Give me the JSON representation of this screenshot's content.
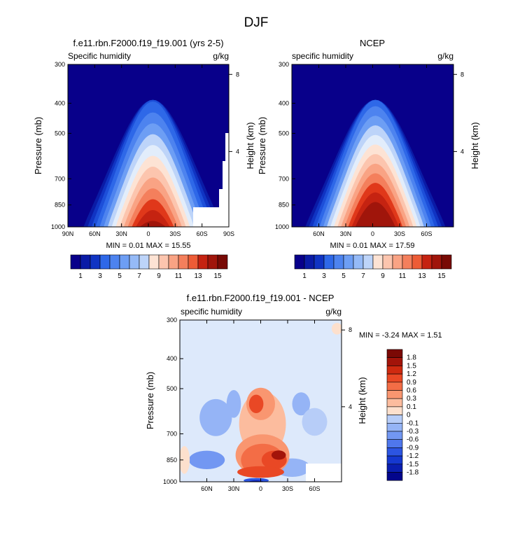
{
  "figure_title": "DJF",
  "colors": {
    "abs_palette": [
      "#08008a",
      "#0a1ba6",
      "#1034c3",
      "#1d4fd9",
      "#2e68e8",
      "#4d83ef",
      "#6d9ef4",
      "#95baf7",
      "#bdd4f9",
      "#e2edfb",
      "#fde3d4",
      "#fcc5ae",
      "#f9a384",
      "#f47f5c",
      "#ed5c36",
      "#e0381a",
      "#c52311",
      "#a0150b",
      "#780a05"
    ],
    "diff_palette": [
      "#03068c",
      "#0a1eb0",
      "#1538d0",
      "#2c55e2",
      "#4f77ec",
      "#7297f2",
      "#95b4f6",
      "#b7cdf8",
      "#dde9fb",
      "#fde0cd",
      "#fcbc9e",
      "#f99670",
      "#f36d46",
      "#e94825",
      "#cf2a10",
      "#a3140a",
      "#7b0905"
    ]
  },
  "chart_data": [
    {
      "type": "heatmap",
      "title": "f.e11.rbn.F2000.f19_f19.001 (yrs 2-5)",
      "left_label": "Specific humidity",
      "units": "g/kg",
      "ylabel": "Pressure (mb)",
      "ylabel_right": "Height (km)",
      "x_ticks": [
        "90N",
        "60N",
        "30N",
        "0",
        "30S",
        "60S",
        "90S"
      ],
      "x_range": [
        90,
        -90
      ],
      "y_ticks": [
        "300",
        "400",
        "500",
        "700",
        "850",
        "1000"
      ],
      "y_range": [
        1000,
        300
      ],
      "right_ticks": [
        "8",
        "4"
      ],
      "stats": "MIN =  0.01   MAX =  15.55",
      "min": 0.01,
      "max": 15.55,
      "peak_lat": -5,
      "colorbar_labels": [
        "1",
        "3",
        "5",
        "7",
        "9",
        "11",
        "13",
        "15"
      ]
    },
    {
      "type": "heatmap",
      "title": "NCEP",
      "left_label": "specific humidity",
      "units": "g/kg",
      "ylabel": "Pressure (mb)",
      "ylabel_right": "Height (km)",
      "x_ticks": [
        "60N",
        "30N",
        "0",
        "30S",
        "60S"
      ],
      "x_range": [
        90,
        -90
      ],
      "y_ticks": [
        "300",
        "400",
        "500",
        "700",
        "850",
        "1000"
      ],
      "y_range": [
        1000,
        300
      ],
      "right_ticks": [
        "8",
        "4"
      ],
      "stats": "MIN =  0.01   MAX =  17.59",
      "min": 0.01,
      "max": 17.59,
      "peak_lat": -3,
      "colorbar_labels": [
        "1",
        "3",
        "5",
        "7",
        "9",
        "11",
        "13",
        "15"
      ]
    },
    {
      "type": "heatmap",
      "title": "f.e11.rbn.F2000.f19_f19.001 - NCEP",
      "left_label": "specific humidity",
      "units": "g/kg",
      "ylabel": "Pressure (mb)",
      "ylabel_right": "Height (km)",
      "x_ticks": [
        "60N",
        "30N",
        "0",
        "30S",
        "60S"
      ],
      "x_range": [
        90,
        -90
      ],
      "y_ticks": [
        "300",
        "400",
        "500",
        "700",
        "850",
        "1000"
      ],
      "y_range": [
        1000,
        300
      ],
      "right_ticks": [
        "8",
        "4"
      ],
      "stats": "MIN =  -3.24   MAX =   1.51",
      "min": -3.24,
      "max": 1.51,
      "colorbar_labels": [
        "1.8",
        "1.5",
        "1.2",
        "0.9",
        "0.6",
        "0.3",
        "0.1",
        "0",
        "-0.1",
        "-0.3",
        "-0.6",
        "-0.9",
        "-1.2",
        "-1.5",
        "-1.8"
      ]
    }
  ]
}
